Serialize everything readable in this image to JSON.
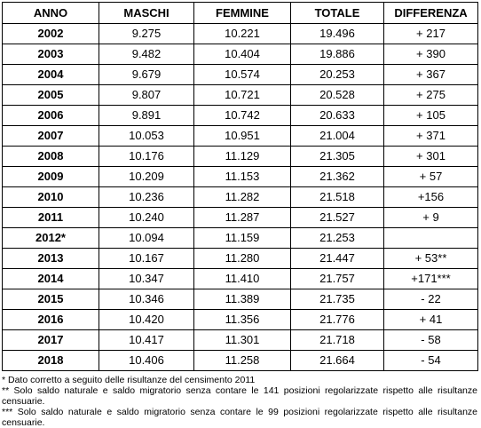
{
  "table": {
    "headers": [
      "ANNO",
      "MASCHI",
      "FEMMINE",
      "TOTALE",
      "DIFFERENZA"
    ],
    "rows": [
      {
        "anno": "2002",
        "maschi": "9.275",
        "femmine": "10.221",
        "totale": "19.496",
        "differenza": "+ 217"
      },
      {
        "anno": "2003",
        "maschi": "9.482",
        "femmine": "10.404",
        "totale": "19.886",
        "differenza": "+ 390"
      },
      {
        "anno": "2004",
        "maschi": "9.679",
        "femmine": "10.574",
        "totale": "20.253",
        "differenza": "+ 367"
      },
      {
        "anno": "2005",
        "maschi": "9.807",
        "femmine": "10.721",
        "totale": "20.528",
        "differenza": "+ 275"
      },
      {
        "anno": "2006",
        "maschi": "9.891",
        "femmine": "10.742",
        "totale": "20.633",
        "differenza": "+ 105"
      },
      {
        "anno": "2007",
        "maschi": "10.053",
        "femmine": "10.951",
        "totale": "21.004",
        "differenza": "+ 371"
      },
      {
        "anno": "2008",
        "maschi": "10.176",
        "femmine": "11.129",
        "totale": "21.305",
        "differenza": "+ 301"
      },
      {
        "anno": "2009",
        "maschi": "10.209",
        "femmine": "11.153",
        "totale": "21.362",
        "differenza": "+  57"
      },
      {
        "anno": "2010",
        "maschi": "10.236",
        "femmine": "11.282",
        "totale": "21.518",
        "differenza": "+156"
      },
      {
        "anno": "2011",
        "maschi": "10.240",
        "femmine": "11.287",
        "totale": "21.527",
        "differenza": "+ 9"
      },
      {
        "anno": "2012*",
        "maschi": "10.094",
        "femmine": "11.159",
        "totale": "21.253",
        "differenza": ""
      },
      {
        "anno": "2013",
        "maschi": "10.167",
        "femmine": "11.280",
        "totale": "21.447",
        "differenza": "+ 53**"
      },
      {
        "anno": "2014",
        "maschi": "10.347",
        "femmine": "11.410",
        "totale": "21.757",
        "differenza": "+171***"
      },
      {
        "anno": "2015",
        "maschi": "10.346",
        "femmine": "11.389",
        "totale": "21.735",
        "differenza": "- 22"
      },
      {
        "anno": "2016",
        "maschi": "10.420",
        "femmine": "11.356",
        "totale": "21.776",
        "differenza": "+ 41"
      },
      {
        "anno": "2017",
        "maschi": "10.417",
        "femmine": "11.301",
        "totale": "21.718",
        "differenza": "- 58"
      },
      {
        "anno": "2018",
        "maschi": "10.406",
        "femmine": "11.258",
        "totale": "21.664",
        "differenza": "- 54"
      }
    ]
  },
  "notes": [
    "*  Dato corretto a seguito delle risultanze del censimento 2011",
    "** Solo saldo naturale e saldo migratorio senza contare le 141 posizioni regolarizzate rispetto alle risultanze censuarie.",
    "*** Solo saldo naturale e saldo migratorio senza contare le 99 posizioni regolarizzate rispetto alle risultanze censuarie."
  ]
}
